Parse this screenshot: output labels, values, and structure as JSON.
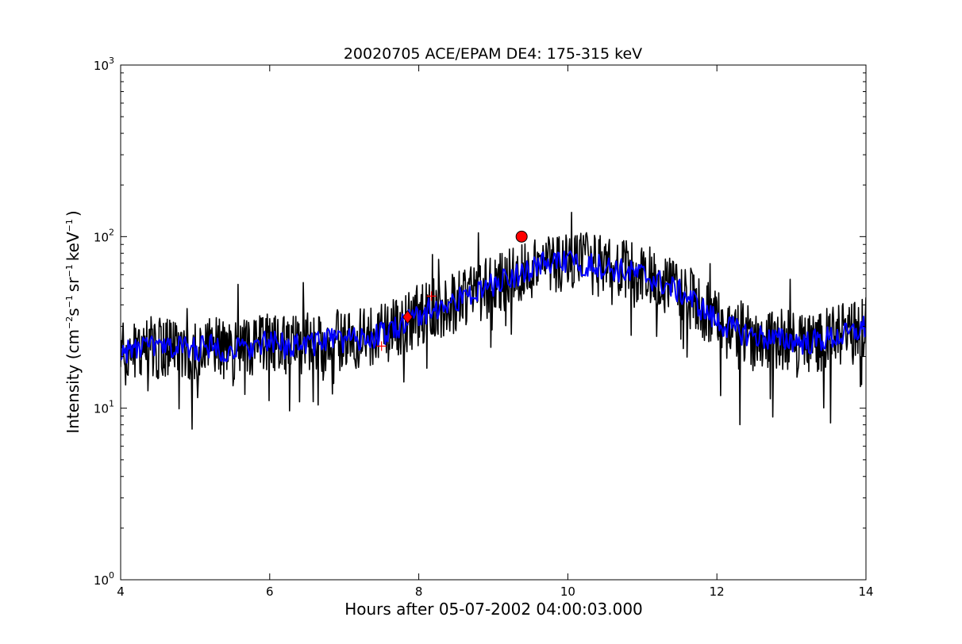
{
  "chart_data": {
    "type": "line",
    "title": "20020705 ACE/EPAM DE4: 175-315 keV",
    "xlabel": "Hours after 05-07-2002 04:00:03.000",
    "ylabel": {
      "prefix": "Intensity (cm",
      "sup1": "−2",
      "mid1": "s",
      "sup2": "−1",
      "mid2": "sr",
      "sup3": "−1",
      "mid3": "keV",
      "sup4": "−1",
      "suffix": ")"
    },
    "xlim": [
      4,
      14
    ],
    "ylim": [
      1,
      1000
    ],
    "yscale": "log",
    "grid": false,
    "x_ticks": [
      4,
      6,
      8,
      10,
      12,
      14
    ],
    "x_tick_labels": [
      "4",
      "6",
      "8",
      "10",
      "12",
      "14"
    ],
    "y_ticks": [
      1,
      10,
      100,
      1000
    ],
    "y_tick_labels": [
      {
        "base": "10",
        "exp": "0"
      },
      {
        "base": "10",
        "exp": "1"
      },
      {
        "base": "10",
        "exp": "2"
      },
      {
        "base": "10",
        "exp": "3"
      }
    ],
    "series": [
      {
        "role": "raw",
        "color": "#000000",
        "x": [
          4.0,
          4.2,
          4.4,
          4.6,
          4.8,
          5.0,
          5.2,
          5.4,
          5.6,
          5.8,
          6.0,
          6.2,
          6.4,
          6.6,
          6.8,
          7.0,
          7.2,
          7.4,
          7.6,
          7.8,
          8.0,
          8.2,
          8.4,
          8.6,
          8.8,
          9.0,
          9.2,
          9.4,
          9.6,
          9.8,
          10.0,
          10.2,
          10.4,
          10.6,
          10.8,
          11.0,
          11.2,
          11.4,
          11.6,
          11.8,
          12.0,
          12.2,
          12.4,
          12.6,
          12.8,
          13.0,
          13.2,
          13.4,
          13.6,
          13.8,
          14.0
        ],
        "values": [
          21,
          22,
          23,
          22,
          23,
          22,
          23,
          22,
          22,
          23,
          24,
          23,
          24,
          24,
          25,
          25,
          25,
          26,
          28,
          31,
          35,
          38,
          40,
          44,
          48,
          52,
          57,
          63,
          68,
          70,
          70,
          70,
          68,
          65,
          62,
          60,
          55,
          50,
          45,
          38,
          32,
          29,
          27,
          26,
          25,
          25,
          24,
          25,
          26,
          27,
          30
        ]
      },
      {
        "role": "smoothed",
        "color": "#0000ff",
        "x": [
          4.0,
          4.2,
          4.4,
          4.6,
          4.8,
          5.0,
          5.2,
          5.4,
          5.6,
          5.8,
          6.0,
          6.2,
          6.4,
          6.6,
          6.8,
          7.0,
          7.2,
          7.4,
          7.6,
          7.8,
          8.0,
          8.2,
          8.4,
          8.6,
          8.8,
          9.0,
          9.2,
          9.4,
          9.6,
          9.8,
          10.0,
          10.2,
          10.4,
          10.6,
          10.8,
          11.0,
          11.2,
          11.4,
          11.6,
          11.8,
          12.0,
          12.2,
          12.4,
          12.6,
          12.8,
          13.0,
          13.2,
          13.4,
          13.6,
          13.8,
          14.0
        ],
        "values": [
          21,
          22,
          23,
          22,
          23,
          22,
          23,
          22,
          22,
          23,
          24,
          23,
          24,
          24,
          25,
          25,
          25,
          26,
          28,
          31,
          35,
          38,
          40,
          44,
          48,
          52,
          57,
          63,
          68,
          70,
          70,
          70,
          68,
          65,
          62,
          60,
          55,
          50,
          45,
          38,
          32,
          29,
          27,
          26,
          25,
          25,
          24,
          25,
          26,
          27,
          30
        ]
      }
    ],
    "markers": [
      {
        "shape": "plus",
        "x": 7.5,
        "y": 23,
        "color": "#ff0000"
      },
      {
        "shape": "diamond",
        "x": 7.85,
        "y": 34,
        "color": "#ff0000"
      },
      {
        "shape": "plus",
        "x": 8.17,
        "y": 45,
        "color": "#ff0000"
      },
      {
        "shape": "circle",
        "x": 9.38,
        "y": 100,
        "color": "#ff0000"
      }
    ]
  }
}
